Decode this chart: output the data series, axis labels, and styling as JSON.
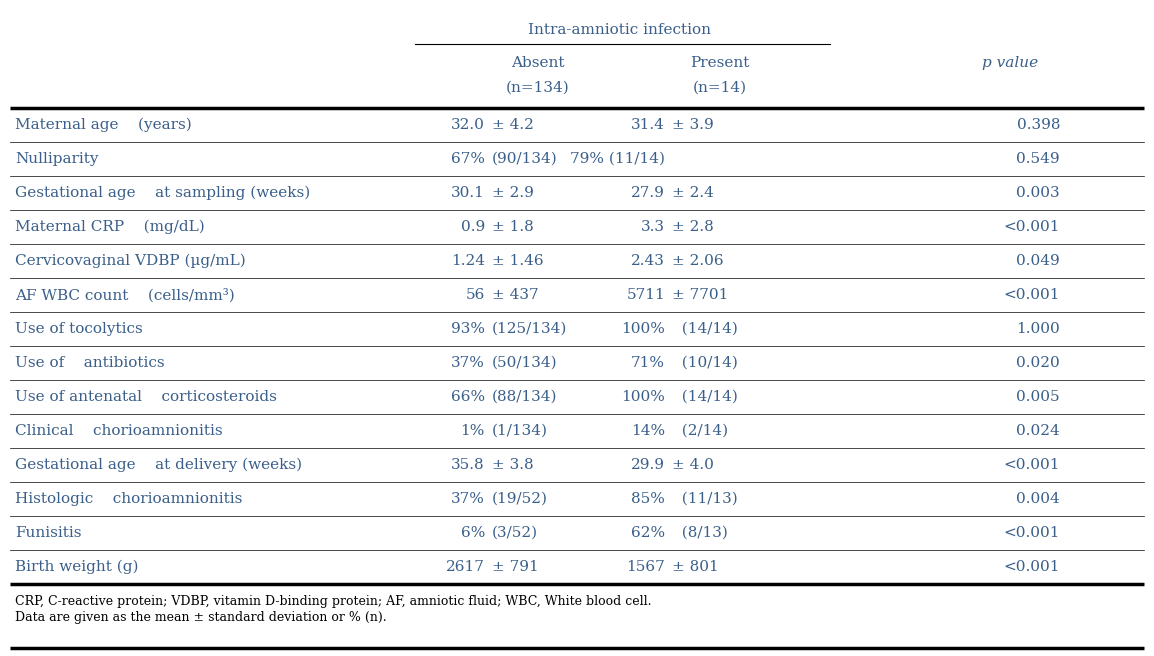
{
  "title": "Intra-amniotic infection",
  "col_absent": "Absent",
  "col_present": "Present",
  "col_absent_n": "(n=134)",
  "col_present_n": "(n=14)",
  "col_pvalue": "p value",
  "text_color": "#3a5f8a",
  "header_text_color": "#3a5f8a",
  "line_color": "#000000",
  "footnote_color": "#000000",
  "bg_color": "#ffffff",
  "rows": [
    {
      "label": "Maternal age    (years)",
      "absent_val": "32.0",
      "absent_sd": "± 4.2",
      "present_val": "31.4",
      "present_sd": "± 3.9",
      "pvalue": "0.398",
      "group": "A"
    },
    {
      "label": "Nulliparity",
      "absent_val": "67%",
      "absent_sd": "(90/134)",
      "present_val": "79% (11/14)",
      "present_sd": "",
      "pvalue": "0.549",
      "group": "A"
    },
    {
      "label": "Gestational age    at sampling (weeks)",
      "absent_val": "30.1",
      "absent_sd": "± 2.9",
      "present_val": "27.9",
      "present_sd": "± 2.4",
      "pvalue": "0.003",
      "group": "B"
    },
    {
      "label": "Maternal CRP    (mg/dL)",
      "absent_val": "0.9",
      "absent_sd": "± 1.8",
      "present_val": "3.3",
      "present_sd": "± 2.8",
      "pvalue": "<0.001",
      "group": "C"
    },
    {
      "label": "Cervicovaginal VDBP (µg/mL)",
      "absent_val": "1.24",
      "absent_sd": "± 1.46",
      "present_val": "2.43",
      "present_sd": "± 2.06",
      "pvalue": "0.049",
      "group": "D"
    },
    {
      "label": "AF WBC count    (cells/mm³)",
      "absent_val": "56",
      "absent_sd": "± 437",
      "present_val": "5711",
      "present_sd": "± 7701",
      "pvalue": "<0.001",
      "group": "E"
    },
    {
      "label": "Use of tocolytics",
      "absent_val": "93%",
      "absent_sd": "(125/134)",
      "present_val": "100%",
      "present_sd": "  (14/14)",
      "pvalue": "1.000",
      "group": "F"
    },
    {
      "label": "Use of    antibiotics",
      "absent_val": "37%",
      "absent_sd": "(50/134)",
      "present_val": "71%",
      "present_sd": "  (10/14)",
      "pvalue": "0.020",
      "group": "F"
    },
    {
      "label": "Use of antenatal    corticosteroids",
      "absent_val": "66%",
      "absent_sd": "(88/134)",
      "present_val": "100%",
      "present_sd": "  (14/14)",
      "pvalue": "0.005",
      "group": "F"
    },
    {
      "label": "Clinical    chorioamnionitis",
      "absent_val": "1%",
      "absent_sd": "(1/134)",
      "present_val": "14%",
      "present_sd": "  (2/14)",
      "pvalue": "0.024",
      "group": "F"
    },
    {
      "label": "Gestational age    at delivery (weeks)",
      "absent_val": "35.8",
      "absent_sd": "± 3.8",
      "present_val": "29.9",
      "present_sd": "± 4.0",
      "pvalue": "<0.001",
      "group": "G"
    },
    {
      "label": "Histologic    chorioamnionitis",
      "absent_val": "37%",
      "absent_sd": "(19/52)",
      "present_val": "85%",
      "present_sd": "  (11/13)",
      "pvalue": "0.004",
      "group": "H"
    },
    {
      "label": "Funisitis",
      "absent_val": "6%",
      "absent_sd": "(3/52)",
      "present_val": "62%",
      "present_sd": "  (8/13)",
      "pvalue": "<0.001",
      "group": "H"
    },
    {
      "label": "Birth weight (g)",
      "absent_val": "2617",
      "absent_sd": "± 791",
      "present_val": "1567",
      "present_sd": "± 801",
      "pvalue": "<0.001",
      "group": "I"
    }
  ],
  "footnote1": "CRP, C-reactive protein; VDBP, vitamin D-binding protein; AF, amniotic fluid; WBC, White blood cell.",
  "footnote2": "blood cell.",
  "footnote3": "Data are given as the mean ± standard deviation or % (n).",
  "font_size": 11.0,
  "header_font_size": 11.0,
  "footnote_font_size": 9.0
}
